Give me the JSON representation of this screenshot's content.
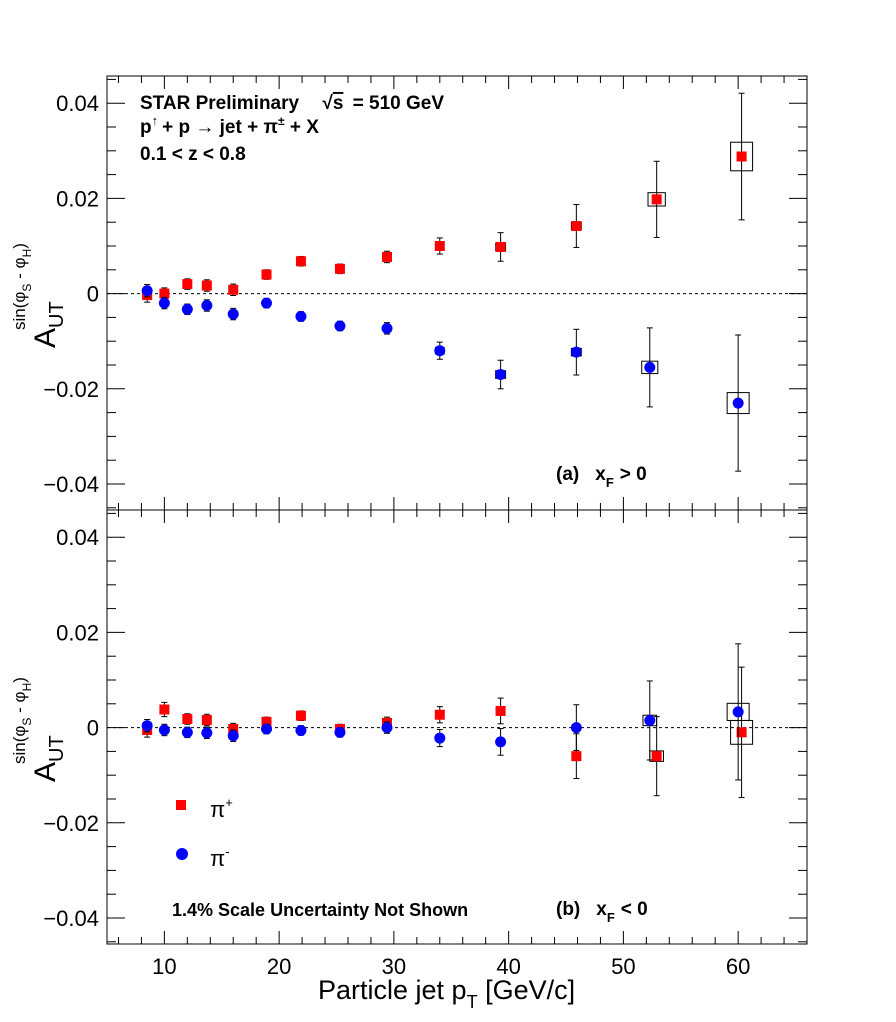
{
  "chart_data": [
    {
      "type": "scatter",
      "panel_label": "(a)",
      "panel_condition": "x",
      "panel_condition_sub": "F",
      "panel_condition_rel": "> 0",
      "header": {
        "line1": "STAR Preliminary",
        "energy_prefix": "√",
        "energy_s": "s",
        "energy_value": "= 510 GeV",
        "line2_p": "p",
        "line2_arrow": "↑",
        "line2_rest": "+ p  → jet + ",
        "line2_pi": "π",
        "line2_pm": "±",
        "line2_end": " + X",
        "line3": "0.1 < z < 0.8"
      },
      "ylabel_main": "A",
      "ylabel_sub": "UT",
      "ylabel_sup": "sin(φ",
      "ylabel_sup_s": "S",
      "ylabel_sup_mid": " - φ",
      "ylabel_sup_h": "H",
      "ylabel_sup_end": ")",
      "xlim": [
        5,
        66
      ],
      "ylim": [
        -0.045,
        0.046
      ],
      "yticks": [
        {
          "value": 0.04,
          "label": "0.04"
        },
        {
          "value": 0.02,
          "label": "0.02"
        },
        {
          "value": 0,
          "label": "0"
        },
        {
          "value": -0.02,
          "label": "−0.02"
        },
        {
          "value": -0.04,
          "label": "−0.04"
        }
      ],
      "series": [
        {
          "name": "π+",
          "marker": "square",
          "color": "#ff0000",
          "points": [
            {
              "x": 8.5,
              "y": -0.0003,
              "err": 0.0015,
              "sys": 0.0004
            },
            {
              "x": 10.0,
              "y": 0.0,
              "err": 0.0012,
              "sys": 0.0004
            },
            {
              "x": 12.0,
              "y": 0.002,
              "err": 0.0011,
              "sys": 0.0004
            },
            {
              "x": 13.7,
              "y": 0.0017,
              "err": 0.0012,
              "sys": 0.0004
            },
            {
              "x": 16.0,
              "y": 0.0008,
              "err": 0.0012,
              "sys": 0.0004
            },
            {
              "x": 18.9,
              "y": 0.004,
              "err": 0.001,
              "sys": 0.0004
            },
            {
              "x": 21.9,
              "y": 0.0068,
              "err": 0.001,
              "sys": 0.0004
            },
            {
              "x": 25.3,
              "y": 0.0052,
              "err": 0.001,
              "sys": 0.0005
            },
            {
              "x": 29.4,
              "y": 0.0077,
              "err": 0.0012,
              "sys": 0.0005
            },
            {
              "x": 34.0,
              "y": 0.01,
              "err": 0.0017,
              "sys": 0.0006
            },
            {
              "x": 39.3,
              "y": 0.0098,
              "err": 0.003,
              "sys": 0.0008
            },
            {
              "x": 45.9,
              "y": 0.0142,
              "err": 0.0045,
              "sys": 0.0008
            },
            {
              "x": 52.9,
              "y": 0.0198,
              "err": 0.008,
              "sys": 0.0014
            },
            {
              "x": 60.3,
              "y": 0.0288,
              "err": 0.0133,
              "sys": 0.003
            }
          ]
        },
        {
          "name": "π-",
          "marker": "circle",
          "color": "#0000ff",
          "points": [
            {
              "x": 8.5,
              "y": 0.0006,
              "err": 0.0013,
              "sys": 0.0004
            },
            {
              "x": 10.0,
              "y": -0.002,
              "err": 0.0012,
              "sys": 0.0004
            },
            {
              "x": 12.0,
              "y": -0.0033,
              "err": 0.0011,
              "sys": 0.0004
            },
            {
              "x": 13.7,
              "y": -0.0025,
              "err": 0.0012,
              "sys": 0.0004
            },
            {
              "x": 16.0,
              "y": -0.0043,
              "err": 0.0012,
              "sys": 0.0004
            },
            {
              "x": 18.9,
              "y": -0.002,
              "err": 0.001,
              "sys": 0.0004
            },
            {
              "x": 21.9,
              "y": -0.0048,
              "err": 0.001,
              "sys": 0.0004
            },
            {
              "x": 25.3,
              "y": -0.0068,
              "err": 0.001,
              "sys": 0.0005
            },
            {
              "x": 29.4,
              "y": -0.0073,
              "err": 0.0012,
              "sys": 0.0006
            },
            {
              "x": 34.0,
              "y": -0.012,
              "err": 0.0018,
              "sys": 0.0007
            },
            {
              "x": 39.3,
              "y": -0.017,
              "err": 0.003,
              "sys": 0.0008
            },
            {
              "x": 45.9,
              "y": -0.0123,
              "err": 0.0048,
              "sys": 0.0008
            },
            {
              "x": 52.3,
              "y": -0.0155,
              "err": 0.0083,
              "sys": 0.0013
            },
            {
              "x": 60.0,
              "y": -0.023,
              "err": 0.0143,
              "sys": 0.0022
            }
          ]
        }
      ]
    },
    {
      "type": "scatter",
      "panel_label": "(b)",
      "panel_condition": "x",
      "panel_condition_sub": "F",
      "panel_condition_rel": "< 0",
      "note": "1.4% Scale Uncertainty Not Shown",
      "ylabel_main": "A",
      "ylabel_sub": "UT",
      "ylabel_sup": "sin(φ",
      "ylabel_sup_s": "S",
      "ylabel_sup_mid": " - φ",
      "ylabel_sup_h": "H",
      "ylabel_sup_end": ")",
      "xlabel": "Particle jet p",
      "xlabel_sub": "T",
      "xlabel_end": " [GeV/c]",
      "xlim": [
        5,
        66
      ],
      "ylim": [
        -0.045,
        0.046
      ],
      "xticks": [
        {
          "value": 10,
          "label": "10"
        },
        {
          "value": 20,
          "label": "20"
        },
        {
          "value": 30,
          "label": "30"
        },
        {
          "value": 40,
          "label": "40"
        },
        {
          "value": 50,
          "label": "50"
        },
        {
          "value": 60,
          "label": "60"
        }
      ],
      "yticks": [
        {
          "value": 0.04,
          "label": "0.04"
        },
        {
          "value": 0.02,
          "label": "0.02"
        },
        {
          "value": 0,
          "label": "0"
        },
        {
          "value": -0.02,
          "label": "−0.02"
        },
        {
          "value": -0.04,
          "label": "−0.04"
        }
      ],
      "legend": [
        {
          "symbol": "π",
          "sup": "+",
          "marker": "square",
          "color": "#ff0000"
        },
        {
          "symbol": "π",
          "sup": "-",
          "marker": "circle",
          "color": "#0000ff"
        }
      ],
      "series": [
        {
          "name": "π+",
          "marker": "square",
          "color": "#ff0000",
          "points": [
            {
              "x": 8.5,
              "y": -0.0005,
              "err": 0.0015,
              "sys": 0.0004
            },
            {
              "x": 10.0,
              "y": 0.0038,
              "err": 0.0015,
              "sys": 0.0004
            },
            {
              "x": 12.0,
              "y": 0.0018,
              "err": 0.0011,
              "sys": 0.0004
            },
            {
              "x": 13.7,
              "y": 0.0016,
              "err": 0.0012,
              "sys": 0.0004
            },
            {
              "x": 16.0,
              "y": -0.0003,
              "err": 0.0012,
              "sys": 0.0004
            },
            {
              "x": 18.9,
              "y": 0.0012,
              "err": 0.001,
              "sys": 0.0004
            },
            {
              "x": 21.9,
              "y": 0.0025,
              "err": 0.001,
              "sys": 0.0004
            },
            {
              "x": 25.3,
              "y": -0.0003,
              "err": 0.001,
              "sys": 0.0004
            },
            {
              "x": 29.4,
              "y": 0.001,
              "err": 0.0012,
              "sys": 0.0004
            },
            {
              "x": 34.0,
              "y": 0.0027,
              "err": 0.0017,
              "sys": 0.0005
            },
            {
              "x": 39.3,
              "y": 0.0035,
              "err": 0.0027,
              "sys": 0.0007
            },
            {
              "x": 45.9,
              "y": -0.006,
              "err": 0.0047,
              "sys": 0.0007
            },
            {
              "x": 52.9,
              "y": -0.006,
              "err": 0.0083,
              "sys": 0.0011
            },
            {
              "x": 60.3,
              "y": -0.001,
              "err": 0.0137,
              "sys": 0.0025
            }
          ]
        },
        {
          "name": "π-",
          "marker": "circle",
          "color": "#0000ff",
          "points": [
            {
              "x": 8.5,
              "y": 0.0004,
              "err": 0.0013,
              "sys": 0.0004
            },
            {
              "x": 10.0,
              "y": -0.0005,
              "err": 0.0012,
              "sys": 0.0004
            },
            {
              "x": 12.0,
              "y": -0.001,
              "err": 0.0011,
              "sys": 0.0004
            },
            {
              "x": 13.7,
              "y": -0.0011,
              "err": 0.0012,
              "sys": 0.0004
            },
            {
              "x": 16.0,
              "y": -0.0017,
              "err": 0.0012,
              "sys": 0.0004
            },
            {
              "x": 18.9,
              "y": -0.0003,
              "err": 0.001,
              "sys": 0.0004
            },
            {
              "x": 21.9,
              "y": -0.0006,
              "err": 0.001,
              "sys": 0.0004
            },
            {
              "x": 25.3,
              "y": -0.001,
              "err": 0.001,
              "sys": 0.0004
            },
            {
              "x": 29.4,
              "y": 0.0,
              "err": 0.0012,
              "sys": 0.0004
            },
            {
              "x": 34.0,
              "y": -0.0022,
              "err": 0.0018,
              "sys": 0.0005
            },
            {
              "x": 39.3,
              "y": -0.003,
              "err": 0.0028,
              "sys": 0.0006
            },
            {
              "x": 45.9,
              "y": 0.0,
              "err": 0.0048,
              "sys": 0.0005
            },
            {
              "x": 52.3,
              "y": 0.0015,
              "err": 0.0083,
              "sys": 0.0011
            },
            {
              "x": 60.0,
              "y": 0.0033,
              "err": 0.0143,
              "sys": 0.0018
            }
          ]
        }
      ]
    }
  ]
}
